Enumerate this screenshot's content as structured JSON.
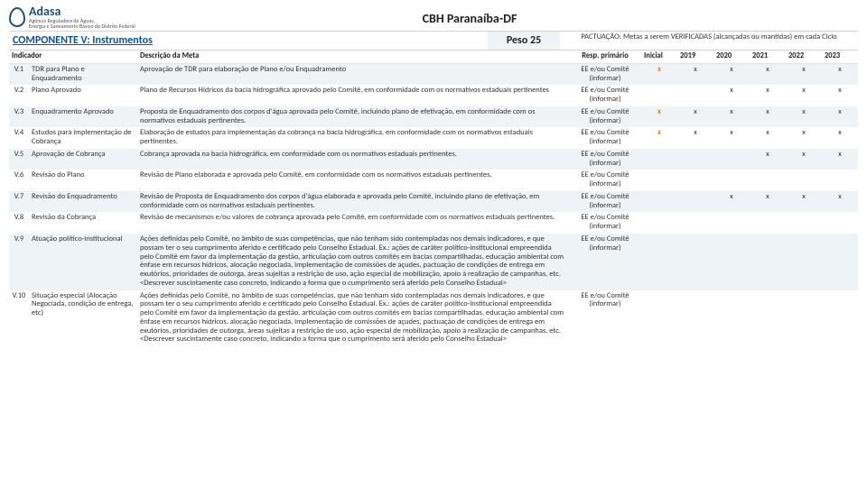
{
  "colors": {
    "stripe": "#eef3f8",
    "link_blue": "#0b53a0",
    "inicial_orange": "#d98b00",
    "adasa_blue": "#1a4f7a",
    "border": "#d0d0d0"
  },
  "logo": {
    "title": "Adasa",
    "sub1": "Agência Reguladora de Águas,",
    "sub2": "Energia e Saneamento Básico do Distrito Federal"
  },
  "page_title": "CBH Paranaíba-DF",
  "component": {
    "title": "COMPONENTE V: Instrumentos",
    "peso_label": "Peso",
    "peso_value": "25",
    "pactuacao": "PACTUAÇÃO: Metas a serem VERIFICADAS (alcançadas ou mantidas) em cada Ciclo"
  },
  "headers": {
    "indicador": "Indicador",
    "descricao": "Descrição da Meta",
    "resp": "Resp. primário",
    "inicial": "Inicial",
    "y2019": "2019",
    "y2020": "2020",
    "y2021": "2021",
    "y2022": "2022",
    "y2023": "2023"
  },
  "mark_char": "x",
  "rows": [
    {
      "id": "V.1",
      "ind": "TDR para Plano e Enquadramento",
      "desc": "Aprovação de TDR para elaboração de Plano e/ou Enquadramento",
      "resp": "EE e/ou Comitê (informar)",
      "marks": [
        true,
        true,
        true,
        true,
        true,
        true
      ],
      "striped": true
    },
    {
      "id": "V.2",
      "ind": "Plano Aprovado",
      "desc": "Plano de Recursos Hídricos da bacia hidrográfica aprovado pelo Comitê, em conformidade com os normativos estaduais pertinentes",
      "resp": "EE e/ou Comitê (informar)",
      "marks": [
        false,
        false,
        true,
        true,
        true,
        true
      ],
      "striped": false
    },
    {
      "id": "V.3",
      "ind": "Enquadramento Aprovado",
      "desc": "Proposta de Enquadramento dos corpos d'água aprovada pelo Comitê, incluindo plano de efetivação, em conformidade com os normativos estaduais pertinentes.",
      "resp": "EE e/ou Comitê (informar)",
      "marks": [
        true,
        true,
        true,
        true,
        true,
        true
      ],
      "striped": true
    },
    {
      "id": "V.4",
      "ind": "Estudos para implementação de Cobrança",
      "desc": "Elaboração de estudos para implementação da cobrança na bacia hidrográfica, em conformidade com os normativos estaduais pertinentes.",
      "resp": "EE e/ou Comitê (informar)",
      "marks": [
        true,
        true,
        true,
        true,
        true,
        true
      ],
      "striped": false
    },
    {
      "id": "V.5",
      "ind": "Aprovação de Cobrança",
      "desc": "Cobrança aprovada na bacia hidrográfica, em conformidade com os normativos estaduais pertinentes.",
      "resp": "EE e/ou Comitê (informar)",
      "marks": [
        false,
        false,
        false,
        true,
        true,
        true
      ],
      "striped": true
    },
    {
      "id": "V.6",
      "ind": "Revisão do Plano",
      "desc": "Revisão de Plano elaborada e aprovada pelo Comitê, em conformidade com os normativos estaduais pertinentes.",
      "resp": "EE e/ou Comitê (informar)",
      "marks": [
        false,
        false,
        false,
        false,
        false,
        false
      ],
      "striped": false
    },
    {
      "id": "V.7",
      "ind": "Revisão do Enquadramento",
      "desc": "Revisão de Proposta de Enquadramento dos corpos d'água elaborada e aprovada pelo Comitê, incluindo plano de efetivação, em conformidade com os normativos estaduais pertinentes.",
      "resp": "EE e/ou Comitê (informar)",
      "marks": [
        false,
        false,
        true,
        true,
        true,
        true
      ],
      "striped": true
    },
    {
      "id": "V.8",
      "ind": "Revisão da Cobrança",
      "desc": "Revisão de mecanismos e/ou valores de cobrança aprovada pelo Comitê, em conformidade com os normativos estaduais pertinentes.",
      "resp": "EE e/ou Comitê (informar)",
      "marks": [
        false,
        false,
        false,
        false,
        false,
        false
      ],
      "striped": false
    },
    {
      "id": "V.9",
      "ind": "Atuação político-institucional",
      "desc": "Ações definidas pelo Comitê, no âmbito de suas competências, que não tenham sido contempladas nos demais indicadores, e que possam ter o seu cumprimento aferido e certificado pelo Conselho Estadual. Ex.: ações de caráter político-institucional empreendida pelo Comitê em favor da implementação da gestão, articulação com outros comitês em bacias compartilhadas, educação ambiental com ênfase em recursos hídricos, alocação negociada, implementação de comissões de açudes, pactuação de condições de entrega em exutórios, prioridades de outorga, áreas sujeitas a restrição de uso, ação especial de mobilização, apoio à realização de campanhas, etc. <Descrever suscintamente caso concreto, indicando a forma que o cumprimento será aferido pelo Conselho Estadual>",
      "resp": "EE e/ou Comitê (informar)",
      "marks": [
        false,
        false,
        false,
        false,
        false,
        false
      ],
      "striped": true
    },
    {
      "id": "V.10",
      "ind": "Situação especial (Alocação Negociada, condição de entrega, etc)",
      "desc": "Ações definidas pelo Comitê, no âmbito de suas competências, que não tenham sido contempladas nos demais indicadores, e que possam ter o seu cumprimento aferido e certificado pelo Conselho Estadual. Ex.: ações de caráter político-institucional empreendida pelo Comitê em favor da implementação da gestão, articulação com outros comitês em bacias compartilhadas, educação ambiental com ênfase em recursos hídricos, alocação negociada, implementação de comissões de açudes, pactuação de condições de entrega em exutórios, prioridades de outorga, áreas sujeitas a restrição de uso, ação especial de mobilização, apoio à realização de campanhas, etc. <Descrever suscintamente caso concreto, indicando a forma que o cumprimento será aferido pelo Conselho Estadual>",
      "resp": "EE e/ou Comitê (informar)",
      "marks": [
        false,
        false,
        false,
        false,
        false,
        false
      ],
      "striped": false
    }
  ]
}
